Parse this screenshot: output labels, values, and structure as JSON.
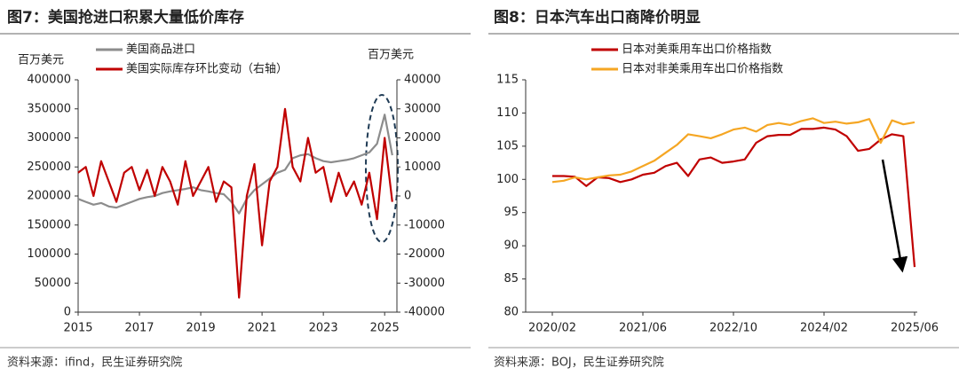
{
  "chart_data": [
    {
      "type": "line",
      "title": "图7：美国抢进口积累大量低价库存",
      "source": "资料来源：ifind，民生证券研究院",
      "ylabel": "百万美元",
      "y2label": "百万美元",
      "x": [
        2015,
        2015.25,
        2015.5,
        2015.75,
        2016,
        2016.25,
        2016.5,
        2016.75,
        2017,
        2017.25,
        2017.5,
        2017.75,
        2018,
        2018.25,
        2018.5,
        2018.75,
        2019,
        2019.25,
        2019.5,
        2019.75,
        2020,
        2020.25,
        2020.5,
        2020.75,
        2021,
        2021.25,
        2021.5,
        2021.75,
        2022,
        2022.25,
        2022.5,
        2022.75,
        2023,
        2023.25,
        2023.5,
        2023.75,
        2024,
        2024.25,
        2024.5,
        2024.75,
        2025,
        2025.25
      ],
      "xlim": [
        2015,
        2025.4
      ],
      "xticks": [
        2015,
        2017,
        2019,
        2021,
        2023,
        2025
      ],
      "ylim": [
        0,
        400000
      ],
      "yticks": [
        0,
        50000,
        100000,
        150000,
        200000,
        250000,
        300000,
        350000,
        400000
      ],
      "y2lim": [
        -40000,
        40000
      ],
      "y2ticks": [
        -40000,
        -30000,
        -20000,
        -10000,
        0,
        10000,
        20000,
        30000,
        40000
      ],
      "series": [
        {
          "name": "美国商品进口",
          "color": "#8c8c8c",
          "values": [
            195000,
            190000,
            185000,
            188000,
            182000,
            180000,
            185000,
            190000,
            195000,
            198000,
            200000,
            205000,
            208000,
            210000,
            212000,
            215000,
            210000,
            208000,
            205000,
            203000,
            190000,
            170000,
            195000,
            210000,
            220000,
            230000,
            240000,
            245000,
            265000,
            270000,
            272000,
            265000,
            260000,
            258000,
            260000,
            262000,
            265000,
            270000,
            275000,
            290000,
            340000,
            270000
          ]
        },
        {
          "name": "美国实际库存环比变动（右轴）",
          "color": "#c00000",
          "axis": "y2",
          "values": [
            8000,
            10000,
            0,
            12000,
            5000,
            -2000,
            8000,
            10000,
            2000,
            9000,
            0,
            10000,
            5000,
            -3000,
            12000,
            0,
            5000,
            10000,
            -2000,
            5000,
            3000,
            -35000,
            0,
            11000,
            -17000,
            5000,
            10000,
            30000,
            10000,
            5000,
            20000,
            8000,
            10000,
            -2000,
            8000,
            0,
            5000,
            -3000,
            8000,
            -8000,
            20000,
            -2000
          ]
        }
      ]
    },
    {
      "type": "line",
      "title": "图8：日本汽车出口商降价明显",
      "source": "资料来源：BOJ，民生证券研究院",
      "x": [
        "2020/02",
        "2020/04",
        "2020/06",
        "2020/08",
        "2020/10",
        "2020/12",
        "2021/02",
        "2021/04",
        "2021/06",
        "2021/08",
        "2021/10",
        "2021/12",
        "2022/02",
        "2022/04",
        "2022/06",
        "2022/08",
        "2022/10",
        "2022/12",
        "2023/02",
        "2023/04",
        "2023/06",
        "2023/08",
        "2023/10",
        "2023/12",
        "2024/02",
        "2024/04",
        "2024/06",
        "2024/08",
        "2024/10",
        "2024/12",
        "2025/02",
        "2025/04",
        "2025/06"
      ],
      "xticks": [
        "2020/02",
        "2021/06",
        "2022/10",
        "2024/02",
        "2025/06"
      ],
      "ylim": [
        80,
        115
      ],
      "yticks": [
        80,
        85,
        90,
        95,
        100,
        105,
        110,
        115
      ],
      "series": [
        {
          "name": "日本对美乘用车出口价格指数",
          "color": "#c00000",
          "values": [
            100.5,
            100.5,
            100.4,
            99.0,
            100.3,
            100.2,
            99.6,
            100.0,
            100.7,
            101.0,
            102.0,
            102.5,
            100.5,
            103.0,
            103.3,
            102.5,
            102.7,
            103.0,
            105.5,
            106.5,
            106.7,
            106.7,
            107.6,
            107.6,
            107.8,
            107.5,
            106.5,
            104.3,
            104.6,
            106.0,
            106.8,
            106.5,
            86.8
          ]
        },
        {
          "name": "日本对非美乘用车出口价格指数",
          "color": "#f5a623",
          "values": [
            99.6,
            99.8,
            100.3,
            100.0,
            100.3,
            100.6,
            100.7,
            101.2,
            102.0,
            102.8,
            104.0,
            105.2,
            106.8,
            106.5,
            106.2,
            106.8,
            107.5,
            107.8,
            107.2,
            108.2,
            108.5,
            108.2,
            108.8,
            109.2,
            108.5,
            108.7,
            108.4,
            108.6,
            109.1,
            105.5,
            108.9,
            108.3,
            108.6
          ]
        }
      ]
    }
  ]
}
